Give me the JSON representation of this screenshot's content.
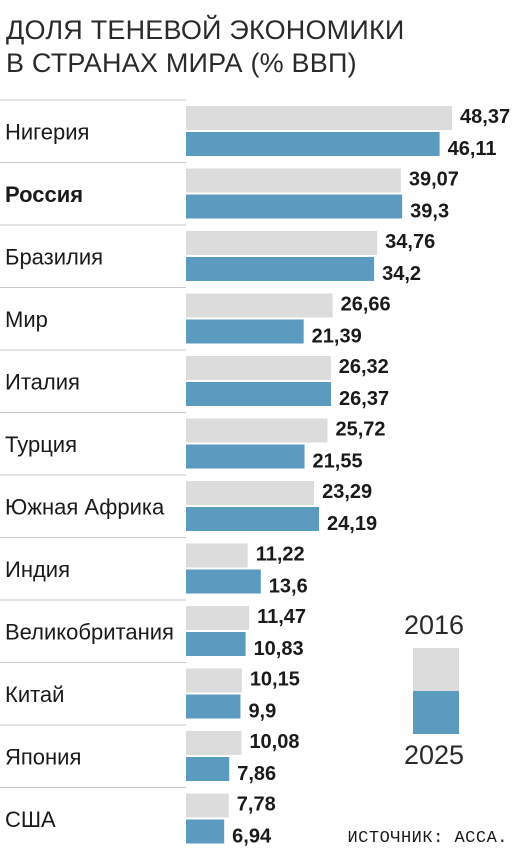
{
  "chart_data": {
    "type": "bar",
    "title": "ДОЛЯ ТЕНЕВОЙ ЭКОНОМИКИ\nВ СТРАНАХ МИРА (% ВВП)",
    "title_lines": [
      "ДОЛЯ ТЕНЕВОЙ ЭКОНОМИКИ",
      "В СТРАНАХ МИРА (% ВВП)"
    ],
    "orientation": "horizontal",
    "categories": [
      "Нигерия",
      "Россия",
      "Бразилия",
      "Мир",
      "Италия",
      "Турция",
      "Южная Африка",
      "Индия",
      "Великобритания",
      "Китай",
      "Япония",
      "США"
    ],
    "highlight_category": "Россия",
    "series": [
      {
        "name": "2016",
        "color": "#dcdcdc",
        "values": [
          48.37,
          39.07,
          34.76,
          26.66,
          26.32,
          25.72,
          23.29,
          11.22,
          11.47,
          10.15,
          10.08,
          7.78
        ],
        "labels": [
          "48,37",
          "39,07",
          "34,76",
          "26,66",
          "26,32",
          "25,72",
          "23,29",
          "11,22",
          "11,47",
          "10,15",
          "10,08",
          "7,78"
        ]
      },
      {
        "name": "2025",
        "color": "#5a9bbf",
        "values": [
          46.11,
          39.3,
          34.2,
          21.39,
          26.37,
          21.55,
          24.19,
          13.6,
          10.83,
          9.9,
          7.86,
          6.94
        ],
        "labels": [
          "46,11",
          "39,3",
          "34,2",
          "21,39",
          "26,37",
          "21,55",
          "24,19",
          "13,6",
          "10,83",
          "9,9",
          "7,86",
          "6,94"
        ]
      }
    ],
    "legend": {
      "placement": "bottom-right",
      "entries": [
        "2016",
        "2025"
      ]
    },
    "grid": false,
    "source": "ИСТОЧНИК: АССА."
  }
}
